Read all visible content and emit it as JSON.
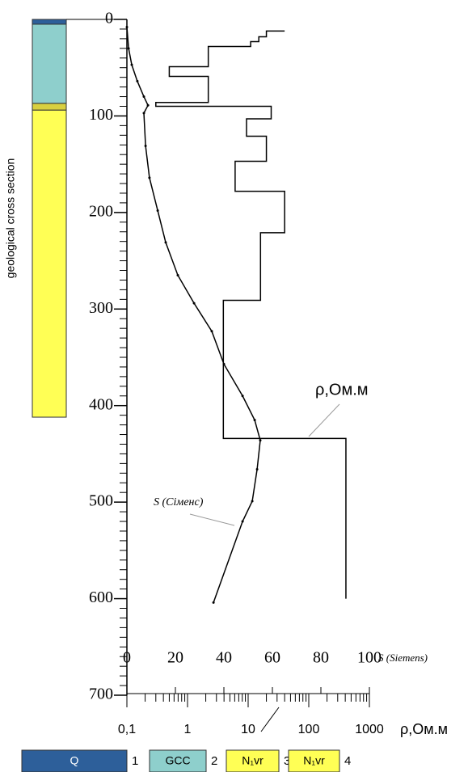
{
  "chart_data": {
    "type": "line",
    "ylim": [
      0,
      700
    ],
    "yticks": [
      0,
      100,
      200,
      300,
      400,
      500,
      600,
      700
    ],
    "y_minor_step": 10,
    "y_inverted": true,
    "xlim": [
      0,
      100
    ],
    "xticks": [
      0,
      20,
      40,
      60,
      80,
      100
    ],
    "x_label": "S (Siemens)",
    "x2lim": [
      0.1,
      1000
    ],
    "x2ticks": [
      {
        "value": 0.1,
        "label": "0,1"
      },
      1,
      10,
      100,
      1000
    ],
    "x2_log": true,
    "x2_label": "ρ,Ом.м",
    "series": [
      {
        "name": "S (Сіменс)",
        "color": "#000000",
        "axis": "x",
        "x": [
          0,
          0.7,
          2,
          4.3,
          7,
          8.7,
          7,
          7.7,
          9.3,
          12.7,
          16,
          21,
          27.7,
          35,
          40,
          47.7,
          52.7,
          55,
          53.7,
          51.7,
          47.7,
          35.7
        ],
        "y": [
          8,
          30,
          47,
          64,
          80,
          89,
          97,
          131,
          164,
          198,
          231,
          265,
          294,
          323,
          357,
          390,
          415,
          436,
          466,
          499,
          520,
          604
        ]
      },
      {
        "name": "ρ,Ом.м",
        "color": "#000000",
        "axis": "x2",
        "x": [
          40,
          20,
          20,
          15,
          15,
          11,
          11,
          2.2,
          2.2,
          0.5,
          0.5,
          2.2,
          2.2,
          0.3,
          0.3,
          24,
          24,
          9.4,
          9.4,
          20,
          20,
          6.1,
          6.1,
          40,
          40,
          16,
          16,
          3.9,
          3.9,
          410,
          410
        ],
        "y": [
          12,
          12,
          18,
          18,
          23,
          23,
          28,
          28,
          49,
          49,
          59,
          59,
          86,
          86,
          90,
          90,
          103,
          103,
          121,
          121,
          147,
          147,
          178,
          178,
          221,
          221,
          291,
          291,
          434,
          434,
          600
        ]
      }
    ],
    "geology": {
      "label": "geological cross section",
      "layers": [
        {
          "top": 0,
          "bottom": 5,
          "color": "#2d5f9a"
        },
        {
          "top": 5,
          "bottom": 87,
          "color": "#8ecfcc"
        },
        {
          "top": 87,
          "bottom": 94,
          "color": "#d8d040"
        },
        {
          "top": 94,
          "bottom": 412,
          "color": "#ffff55"
        }
      ]
    },
    "legend": [
      {
        "symbol": "Q",
        "label": "1",
        "color": "#2d5f9a"
      },
      {
        "symbol": "GCC",
        "label": "2",
        "color": "#8ecfcc"
      },
      {
        "symbol": "N₁vr",
        "label": "3",
        "color": "#ffff55"
      },
      {
        "symbol": "N₁vr",
        "label": "4",
        "color": "#ffff55"
      }
    ]
  }
}
